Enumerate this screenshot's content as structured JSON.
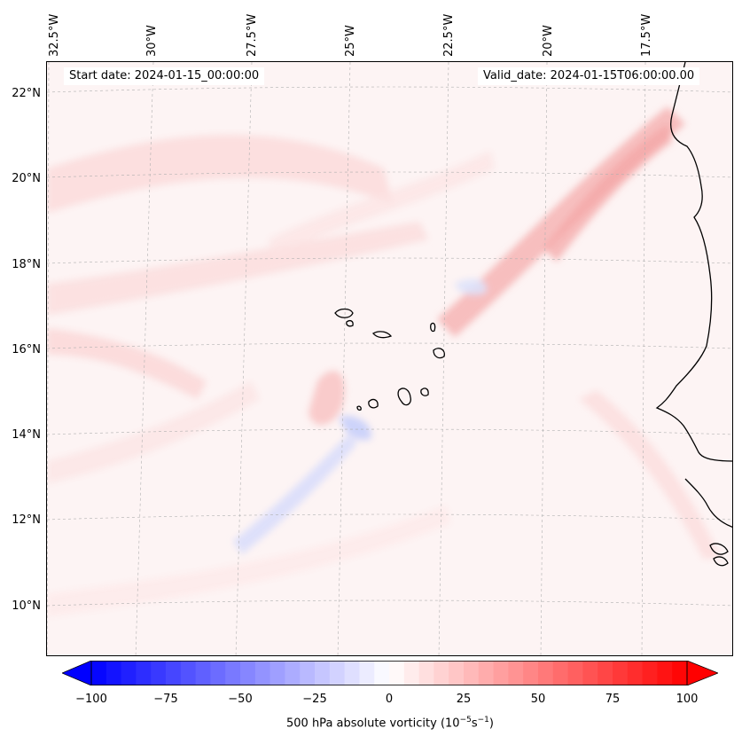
{
  "map": {
    "start_date_text": "Start date: 2024-01-15_00:00:00",
    "valid_date_text": "Valid_date: 2024-01-15T06:00:00.00",
    "lon_labels": [
      "32.5°W",
      "30°W",
      "27.5°W",
      "25°W",
      "22.5°W",
      "20°W",
      "17.5°W"
    ],
    "lat_labels": [
      "22°N",
      "20°N",
      "18°N",
      "16°N",
      "14°N",
      "12°N",
      "10°N"
    ],
    "colors": {
      "negative_max": "#0000ff",
      "neutral": "#ffffff",
      "positive_max": "#ff0000",
      "coastline": "#000000",
      "gridline": "#b0b0b0"
    },
    "features": [
      "Cape Verde islands",
      "West African coastline"
    ]
  },
  "colorbar": {
    "ticks": [
      "−100",
      "−75",
      "−50",
      "−25",
      "0",
      "25",
      "50",
      "75",
      "100"
    ],
    "label_prefix": "500 hPa absolute vorticity (10",
    "label_exp1": "−5",
    "label_mid": "s",
    "label_exp2": "−1",
    "label_suffix": ")",
    "min": -100,
    "max": 100,
    "levels": 41,
    "extend": "both"
  }
}
